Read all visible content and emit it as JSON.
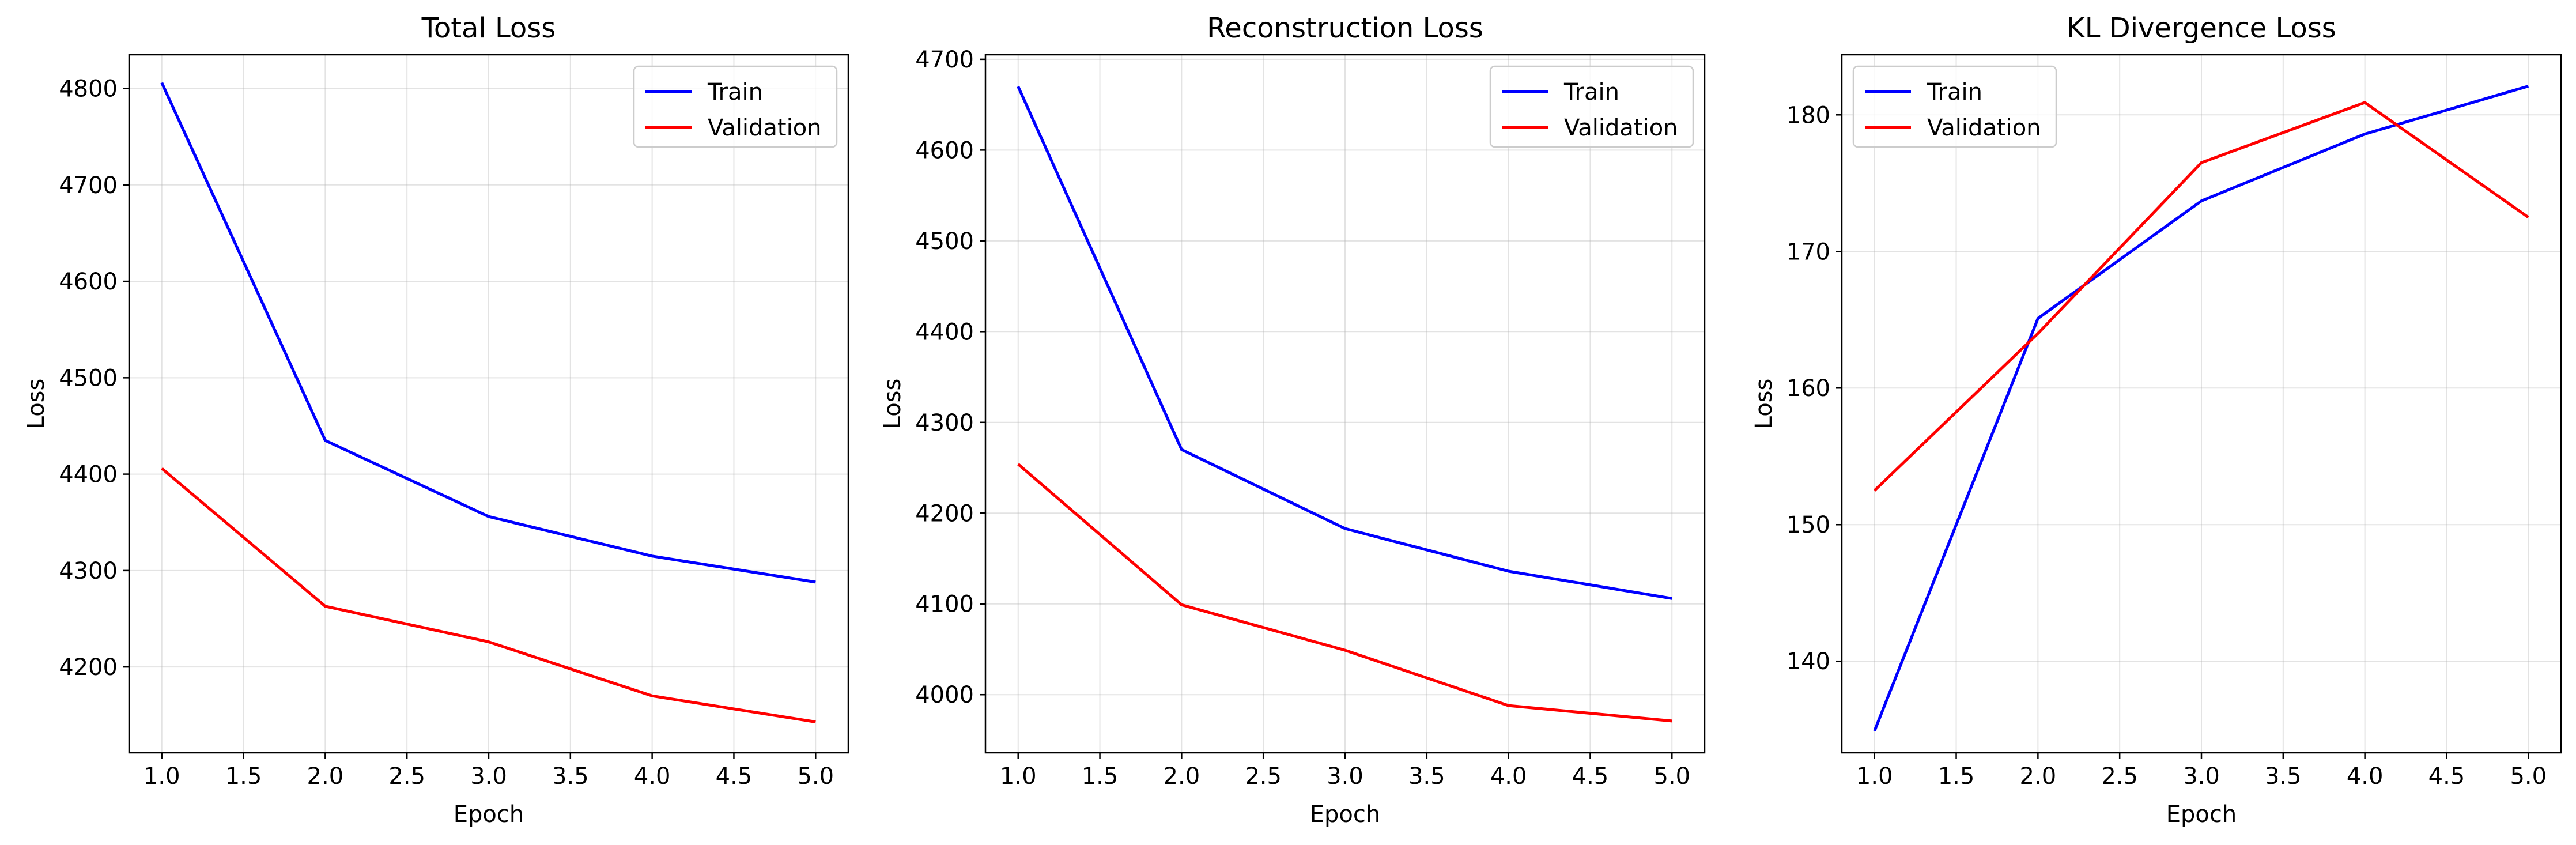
{
  "colors": {
    "train": "#0000ff",
    "validation": "#ff0000"
  },
  "chart_data": [
    {
      "type": "line",
      "title": "Total Loss",
      "xlabel": "Epoch",
      "ylabel": "Loss",
      "xlim": [
        0.8,
        5.2
      ],
      "ylim": [
        4111,
        4835
      ],
      "xticks": [
        1.0,
        1.5,
        2.0,
        2.5,
        3.0,
        3.5,
        4.0,
        4.5,
        5.0
      ],
      "xtick_labels": [
        "1.0",
        "1.5",
        "2.0",
        "2.5",
        "3.0",
        "3.5",
        "4.0",
        "4.5",
        "5.0"
      ],
      "yticks": [
        4200,
        4300,
        4400,
        4500,
        4600,
        4700,
        4800
      ],
      "ytick_labels": [
        "4200",
        "4300",
        "4400",
        "4500",
        "4600",
        "4700",
        "4800"
      ],
      "grid": true,
      "legend": "top-right",
      "x": [
        1,
        2,
        3,
        4,
        5
      ],
      "series": [
        {
          "name": "Train",
          "color": "#0000ff",
          "values": [
            4806,
            4435,
            4356,
            4315,
            4288
          ]
        },
        {
          "name": "Validation",
          "color": "#ff0000",
          "values": [
            4406,
            4263,
            4226,
            4170,
            4143
          ]
        }
      ]
    },
    {
      "type": "line",
      "title": "Reconstruction Loss",
      "xlabel": "Epoch",
      "ylabel": "Loss",
      "xlim": [
        0.8,
        5.2
      ],
      "ylim": [
        3936,
        4705
      ],
      "xticks": [
        1.0,
        1.5,
        2.0,
        2.5,
        3.0,
        3.5,
        4.0,
        4.5,
        5.0
      ],
      "xtick_labels": [
        "1.0",
        "1.5",
        "2.0",
        "2.5",
        "3.0",
        "3.5",
        "4.0",
        "4.5",
        "5.0"
      ],
      "yticks": [
        4000,
        4100,
        4200,
        4300,
        4400,
        4500,
        4600,
        4700
      ],
      "ytick_labels": [
        "4000",
        "4100",
        "4200",
        "4300",
        "4400",
        "4500",
        "4600",
        "4700"
      ],
      "grid": true,
      "legend": "top-right",
      "x": [
        1,
        2,
        3,
        4,
        5
      ],
      "series": [
        {
          "name": "Train",
          "color": "#0000ff",
          "values": [
            4670,
            4270,
            4183,
            4136,
            4106
          ]
        },
        {
          "name": "Validation",
          "color": "#ff0000",
          "values": [
            4254,
            4099,
            4049,
            3988,
            3971
          ]
        }
      ]
    },
    {
      "type": "line",
      "title": "KL Divergence Loss",
      "xlabel": "Epoch",
      "ylabel": "Loss",
      "xlim": [
        0.8,
        5.2
      ],
      "ylim": [
        133.3,
        184.4
      ],
      "xticks": [
        1.0,
        1.5,
        2.0,
        2.5,
        3.0,
        3.5,
        4.0,
        4.5,
        5.0
      ],
      "xtick_labels": [
        "1.0",
        "1.5",
        "2.0",
        "2.5",
        "3.0",
        "3.5",
        "4.0",
        "4.5",
        "5.0"
      ],
      "yticks": [
        140,
        150,
        160,
        170,
        180
      ],
      "ytick_labels": [
        "140",
        "150",
        "160",
        "170",
        "180"
      ],
      "grid": true,
      "legend": "top-left",
      "x": [
        1,
        2,
        3,
        4,
        5
      ],
      "series": [
        {
          "name": "Train",
          "color": "#0000ff",
          "values": [
            134.9,
            165.1,
            173.7,
            178.6,
            182.1
          ]
        },
        {
          "name": "Validation",
          "color": "#ff0000",
          "values": [
            152.5,
            164.0,
            176.5,
            180.9,
            172.5
          ]
        }
      ]
    }
  ]
}
